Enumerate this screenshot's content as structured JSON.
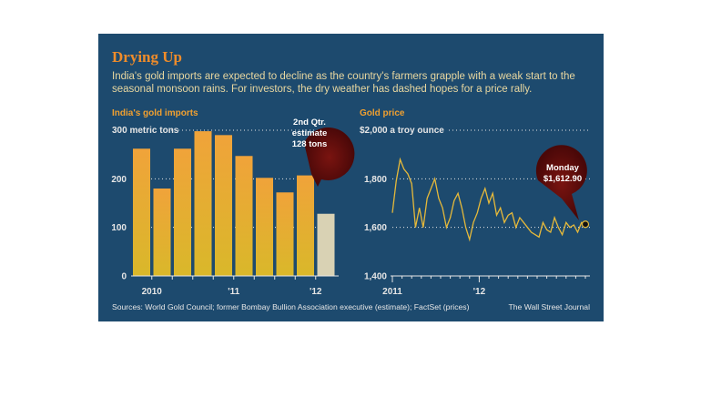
{
  "graphic": {
    "title": "Drying Up",
    "dek": "India's gold imports are expected to decline as the country's farmers grapple with a weak start to the seasonal monsoon rains. For investors, the dry weather has dashed hopes for a price rally.",
    "source": "Sources: World Gold Council; former Bombay Bullion Association executive (estimate); FactSet (prices)",
    "credit": "The Wall Street Journal"
  },
  "colors": {
    "background": "#1d4a6e",
    "title": "#f08c2a",
    "bar": "#e0b52e",
    "bar_estimate": "#d9d2b4",
    "line": "#e6b93a",
    "header": "#f0a030",
    "callout": "#6a1010"
  },
  "chart_data": [
    {
      "type": "bar",
      "title": "India's gold imports",
      "unit_label": "300 metric tons",
      "categories": [
        "2010 Q1",
        "2010 Q2",
        "2010 Q3",
        "2010 Q4",
        "2011 Q1",
        "2011 Q2",
        "2011 Q3",
        "2011 Q4",
        "2012 Q1",
        "2012 Q2"
      ],
      "values": [
        262,
        180,
        262,
        298,
        290,
        247,
        202,
        172,
        207,
        128
      ],
      "estimate_index": 9,
      "ylim": [
        0,
        300
      ],
      "yticks": [
        0,
        100,
        200
      ],
      "xtick_labels": [
        {
          "label": "2010",
          "index": 0.5
        },
        {
          "label": "'11",
          "index": 4.5
        },
        {
          "label": "'12",
          "index": 8.5
        }
      ],
      "callout": {
        "lines": [
          "2nd Qtr.",
          "estimate",
          "128 tons"
        ],
        "index": 9
      }
    },
    {
      "type": "line",
      "title": "Gold price",
      "unit_label": "$2,000 a troy ounce",
      "ylim": [
        1400,
        2000
      ],
      "yticks": [
        1400,
        1600,
        1800
      ],
      "ytick_labels": [
        "1,400",
        "1,600",
        "1,800"
      ],
      "xtick_labels": [
        {
          "label": "2011",
          "x": 0.0
        },
        {
          "label": "'12",
          "x": 0.45
        }
      ],
      "series": [
        {
          "x": [
            0.0,
            0.02,
            0.04,
            0.06,
            0.08,
            0.1,
            0.12,
            0.14,
            0.16,
            0.18,
            0.2,
            0.22,
            0.24,
            0.26,
            0.28,
            0.3,
            0.32,
            0.34,
            0.36,
            0.38,
            0.4,
            0.42,
            0.44,
            0.46,
            0.48,
            0.5,
            0.52,
            0.54,
            0.56,
            0.58,
            0.6,
            0.62,
            0.64,
            0.66,
            0.68,
            0.7,
            0.72,
            0.74,
            0.76,
            0.78,
            0.8,
            0.82,
            0.84,
            0.86,
            0.88,
            0.9,
            0.92,
            0.94,
            0.96,
            0.98,
            1.0
          ],
          "values": [
            1660,
            1790,
            1880,
            1840,
            1820,
            1780,
            1600,
            1680,
            1600,
            1720,
            1760,
            1800,
            1720,
            1680,
            1600,
            1640,
            1710,
            1740,
            1680,
            1600,
            1550,
            1620,
            1660,
            1720,
            1760,
            1700,
            1740,
            1650,
            1680,
            1620,
            1650,
            1660,
            1600,
            1640,
            1620,
            1600,
            1580,
            1570,
            1560,
            1620,
            1590,
            1580,
            1640,
            1600,
            1570,
            1620,
            1600,
            1610,
            1580,
            1620,
            1612.9
          ]
        }
      ],
      "callout": {
        "lines": [
          "Monday",
          "$1,612.90"
        ],
        "value": 1612.9
      }
    }
  ]
}
